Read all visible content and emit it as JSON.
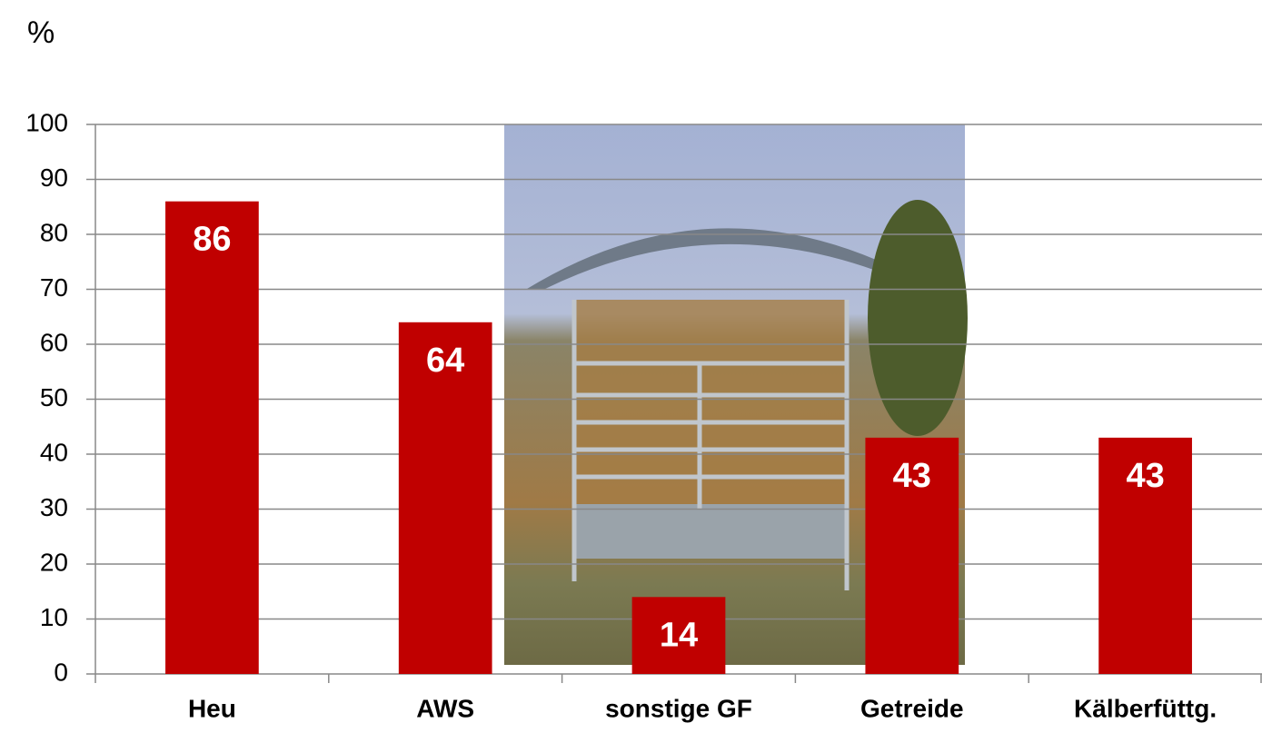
{
  "chart_data": {
    "type": "bar",
    "y_axis_label": "%",
    "categories": [
      "Heu",
      "AWS",
      "sonstige GF",
      "Getreide",
      "Kälberfüttg."
    ],
    "values": [
      86,
      64,
      14,
      43,
      43
    ],
    "color": "#c00000",
    "ylim": [
      0,
      100
    ],
    "yticks": [
      0,
      10,
      20,
      30,
      40,
      50,
      60,
      70,
      80,
      90,
      100
    ],
    "grid": true
  }
}
